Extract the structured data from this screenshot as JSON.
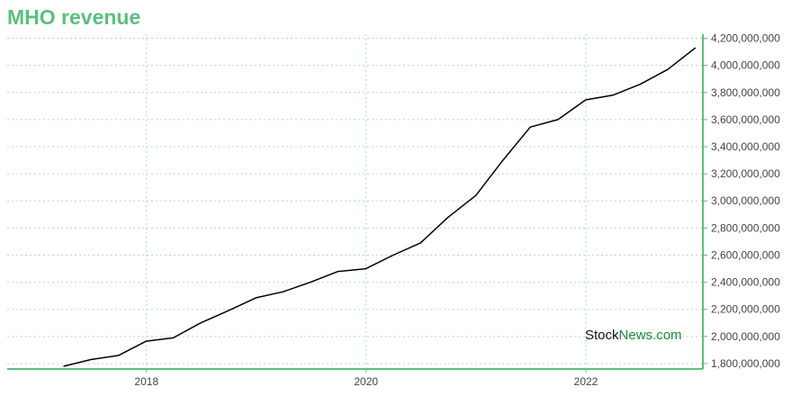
{
  "title": "MHO revenue",
  "watermark": {
    "part1": "Stock",
    "part2": "News",
    "part3": ".com"
  },
  "colors": {
    "accent": "#5bbf7e",
    "line": "#000000",
    "grid": "#a8e0c0",
    "watermark_green": "#1a8a3c"
  },
  "chart_data": {
    "type": "line",
    "title": "MHO revenue",
    "xlabel": "",
    "ylabel": "",
    "grid": true,
    "legend": "none",
    "x_ticks": [
      "2018",
      "2020",
      "2022"
    ],
    "y_ticks": [
      "1,800,000,000",
      "2,000,000,000",
      "2,200,000,000",
      "2,400,000,000",
      "2,600,000,000",
      "2,800,000,000",
      "3,000,000,000",
      "3,200,000,000",
      "3,400,000,000",
      "3,600,000,000",
      "3,800,000,000",
      "4,000,000,000",
      "4,200,000,000"
    ],
    "ylim": [
      1760000000,
      4230000000
    ],
    "series": [
      {
        "color": "#000000",
        "x": [
          "2017-03-31",
          "2017-06-30",
          "2017-09-30",
          "2017-12-31",
          "2018-03-31",
          "2018-06-30",
          "2018-09-30",
          "2018-12-31",
          "2019-03-31",
          "2019-06-30",
          "2019-09-30",
          "2019-12-31",
          "2020-03-31",
          "2020-06-30",
          "2020-09-30",
          "2020-12-31",
          "2021-03-31",
          "2021-06-30",
          "2021-09-30",
          "2021-12-31",
          "2022-03-31",
          "2022-06-30",
          "2022-09-30",
          "2022-12-31"
        ],
        "y": [
          1780000000,
          1830000000,
          1860000000,
          1965000000,
          1990000000,
          2100000000,
          2190000000,
          2285000000,
          2330000000,
          2400000000,
          2480000000,
          2500000000,
          2600000000,
          2690000000,
          2880000000,
          3040000000,
          3300000000,
          3545000000,
          3600000000,
          3745000000,
          3780000000,
          3860000000,
          3970000000,
          4130000000
        ]
      }
    ]
  }
}
